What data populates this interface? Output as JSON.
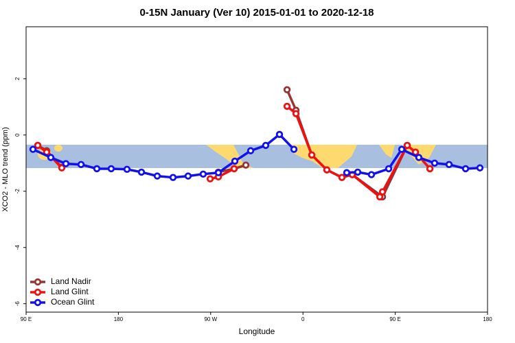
{
  "chart_data": {
    "type": "line",
    "title": "0-15N January (Ver 10)   2015-01-01 to 2020-12-18",
    "x_label": "Longitude",
    "y_label": "XCO2 - MLO trend (ppm)",
    "xlim": [
      90,
      540
    ],
    "xticks": [
      {
        "value": 90,
        "label": "90 E"
      },
      180,
      {
        "value": 270,
        "label": "90 W"
      },
      {
        "value": 360,
        "label": "0"
      },
      {
        "value": 450,
        "label": "90 E"
      },
      {
        "value": 540,
        "label": "180"
      }
    ],
    "ylim": [
      -6.3,
      3.85
    ],
    "yticks": [
      2,
      0,
      -2,
      -4,
      -6
    ],
    "legend": "bottom-left",
    "series": [
      {
        "name": "Land Nadir",
        "color": "#993333",
        "x": [
          101.4,
          110.1,
          124.8,
          null,
          277.5,
          292.9,
          304.3,
          null,
          344.5,
          353.2,
          368.6,
          383.3,
          398,
          408.1,
          437.6,
          461.7,
          469.7,
          483.8
        ],
        "values": [
          -0.37,
          -0.56,
          -1.15,
          null,
          -1.32,
          -1.2,
          -1.07,
          null,
          1.61,
          0.88,
          -0.71,
          -1.24,
          -1.51,
          -1.41,
          -2.2,
          -0.37,
          -0.61,
          -1.2
        ]
      },
      {
        "name": "Land Glint",
        "color": "#ee1111",
        "x": [
          101.4,
          110.1,
          124.8,
          null,
          269.5,
          277.5,
          292.9,
          null,
          344.5,
          353.2,
          368.6,
          383.3,
          398,
          408.1,
          434.9,
          437.6,
          461.7,
          469.7,
          483.8
        ],
        "values": [
          -0.37,
          -0.61,
          -1.17,
          null,
          -1.56,
          -1.49,
          -1.2,
          null,
          1.02,
          0.76,
          -0.71,
          -1.24,
          -1.51,
          -1.41,
          -2.2,
          -2.02,
          -0.37,
          -0.61,
          -1.2
        ]
      },
      {
        "name": "Ocean Glint",
        "color": "#1111ee",
        "x": [
          96.7,
          114.1,
          128.8,
          143.6,
          159,
          173,
          188.4,
          202.5,
          217.9,
          233.3,
          248,
          262.7,
          277.5,
          293.6,
          309,
          323.7,
          337.1,
          351.2,
          null,
          402.7,
          413.4,
          426.8,
          443.6,
          456.3,
          473,
          488.4,
          502.5,
          518.6,
          532.6
        ],
        "values": [
          -0.51,
          -0.8,
          -1.02,
          -1.05,
          -1.2,
          -1.2,
          -1.22,
          -1.32,
          -1.46,
          -1.51,
          -1.46,
          -1.39,
          -1.34,
          -0.93,
          -0.56,
          -0.37,
          0.02,
          -0.51,
          null,
          -1.34,
          -1.32,
          -1.41,
          -1.2,
          -0.51,
          -0.8,
          -1.0,
          -1.05,
          -1.2,
          -1.17
        ]
      }
    ]
  }
}
